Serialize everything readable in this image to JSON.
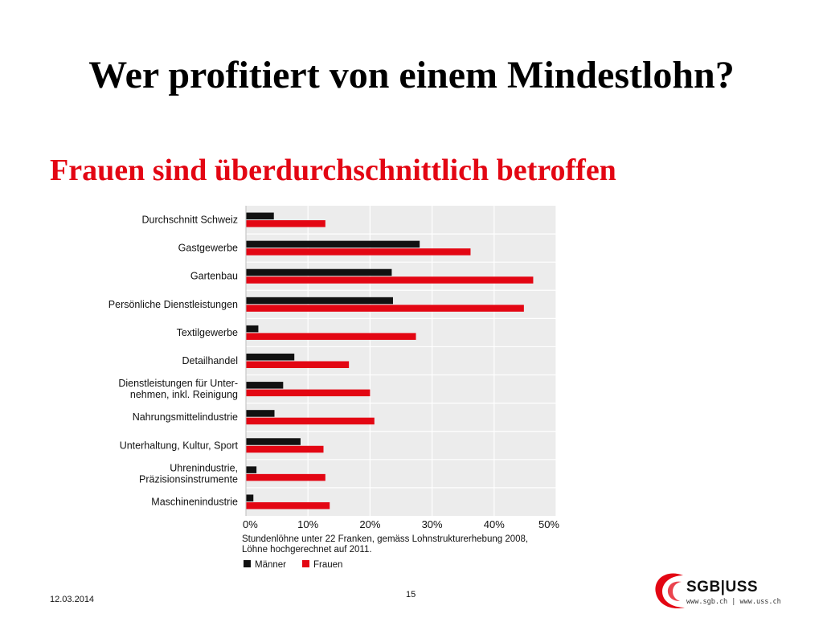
{
  "slide": {
    "title": "Wer profitiert von einem Mindestlohn?",
    "subtitle": "Frauen sind überdurchschnittlich betroffen",
    "date": "12.03.2014",
    "page_number": "15",
    "logo": {
      "main": "SGB|USS",
      "sub": "www.sgb.ch | www.uss.ch"
    }
  },
  "colors": {
    "maenner": "#111111",
    "frauen": "#e30613",
    "plot_background": "#ececec",
    "grid": "#ffffff",
    "title_accent": "#e30613"
  },
  "chart_data": {
    "type": "bar",
    "orientation": "horizontal",
    "categories": [
      "Durchschnitt Schweiz",
      "Gastgewerbe",
      "Gartenbau",
      "Persönliche Dienstleistungen",
      "Textilgewerbe",
      "Detailhandel",
      "Dienstleistungen für Unter-\nnehmen, inkl. Reinigung",
      "Nahrungsmittelindustrie",
      "Unterhaltung, Kultur, Sport",
      "Uhrenindustrie,\nPräzisionsinstrumente",
      "Maschinenindustrie"
    ],
    "series": [
      {
        "name": "Männer",
        "values": [
          4.5,
          28,
          23.5,
          23.7,
          2,
          7.8,
          6,
          4.6,
          8.8,
          1.7,
          1.2
        ]
      },
      {
        "name": "Frauen",
        "values": [
          12.8,
          36.2,
          46.3,
          44.8,
          27.4,
          16.6,
          20,
          20.7,
          12.5,
          12.8,
          13.5
        ]
      }
    ],
    "xlim": [
      0,
      50
    ],
    "xticks": [
      "0%",
      "10%",
      "20%",
      "30%",
      "40%",
      "50%"
    ],
    "unit": "%",
    "note": [
      "Stundenlöhne unter 22 Franken, gemäss Lohnstrukturerhebung 2008,",
      "Löhne hochgerechnet auf 2011."
    ],
    "grid": true,
    "legend_position": "bottom-left"
  }
}
